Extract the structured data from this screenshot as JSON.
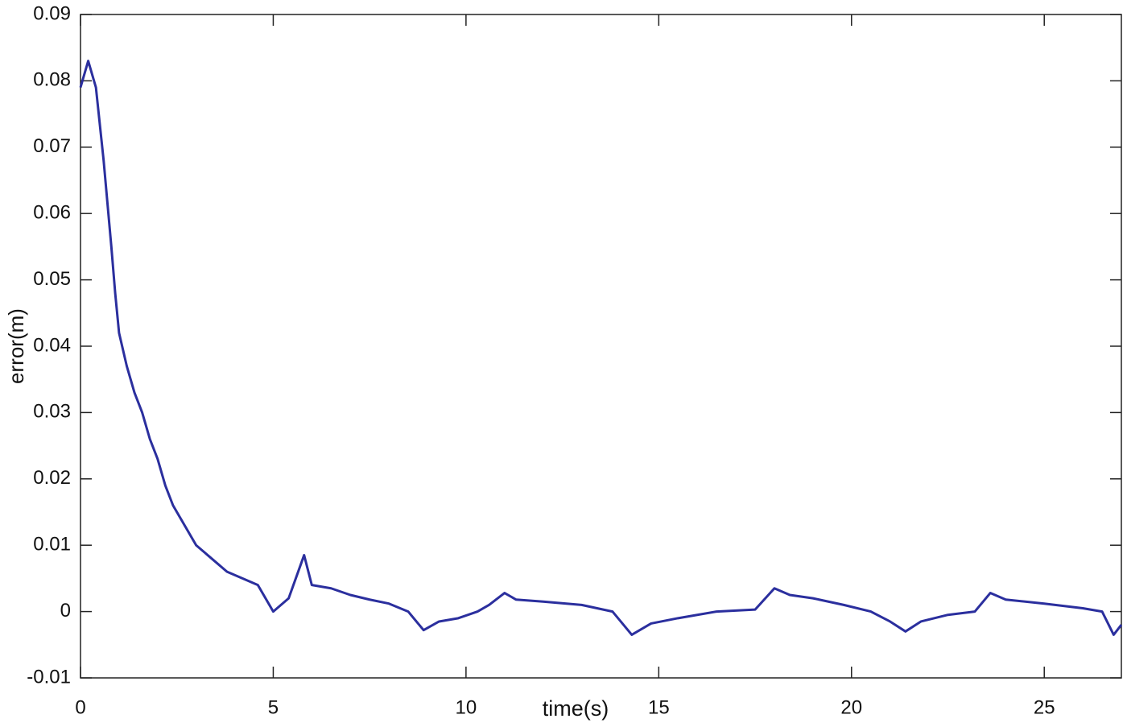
{
  "chart_data": {
    "type": "line",
    "xlabel": "time(s)",
    "ylabel": "error(m)",
    "xlim": [
      0,
      27
    ],
    "ylim": [
      -0.01,
      0.09
    ],
    "xticks": [
      0,
      5,
      10,
      15,
      20,
      25
    ],
    "yticks": [
      -0.01,
      0,
      0.01,
      0.02,
      0.03,
      0.04,
      0.05,
      0.06,
      0.07,
      0.08,
      0.09
    ],
    "grid": false,
    "series": [
      {
        "color": "#2b2f9e",
        "x": [
          0,
          0.2,
          0.4,
          0.6,
          0.8,
          0.9,
          1.0,
          1.2,
          1.4,
          1.6,
          1.8,
          2.0,
          2.2,
          2.4,
          2.6,
          2.8,
          3.0,
          3.4,
          3.8,
          4.2,
          4.6,
          5.0,
          5.4,
          5.8,
          6.0,
          6.5,
          7.0,
          7.5,
          8.0,
          8.5,
          8.9,
          9.3,
          9.8,
          10.3,
          10.6,
          11.0,
          11.3,
          12.0,
          13.0,
          13.8,
          14.3,
          14.8,
          15.5,
          16.5,
          17.5,
          18.0,
          18.4,
          19.0,
          19.8,
          20.5,
          21.0,
          21.4,
          21.8,
          22.5,
          23.2,
          23.6,
          24.0,
          25.0,
          26.0,
          26.5,
          26.8,
          27.0
        ],
        "values": [
          0.079,
          0.083,
          0.079,
          0.068,
          0.055,
          0.048,
          0.042,
          0.037,
          0.033,
          0.03,
          0.026,
          0.023,
          0.019,
          0.016,
          0.014,
          0.012,
          0.01,
          0.008,
          0.006,
          0.005,
          0.004,
          0.0,
          0.002,
          0.0085,
          0.004,
          0.0035,
          0.0025,
          0.0018,
          0.0012,
          0.0,
          -0.0028,
          -0.0015,
          -0.001,
          0.0,
          0.001,
          0.0028,
          0.0018,
          0.0015,
          0.001,
          0.0,
          -0.0035,
          -0.0018,
          -0.001,
          0.0,
          0.0003,
          0.0035,
          0.0025,
          0.002,
          0.001,
          0.0,
          -0.0015,
          -0.003,
          -0.0015,
          -0.0005,
          0.0,
          0.0028,
          0.0018,
          0.0012,
          0.0005,
          0.0,
          -0.0035,
          -0.002
        ]
      }
    ]
  }
}
